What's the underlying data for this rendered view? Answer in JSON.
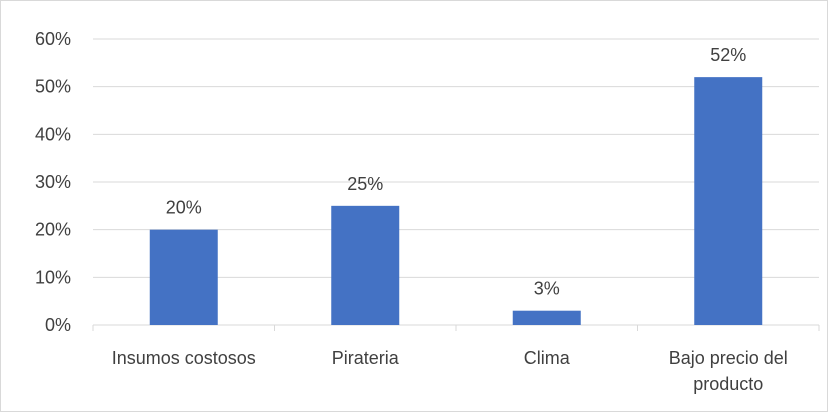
{
  "chart_data": {
    "type": "bar",
    "title": "",
    "xlabel": "",
    "ylabel": "",
    "categories": [
      "Insumos costosos",
      "Pirateria",
      "Clima",
      "Bajo precio del producto"
    ],
    "category_lines": [
      [
        "Insumos costosos"
      ],
      [
        "Pirateria"
      ],
      [
        "Clima"
      ],
      [
        "Bajo precio del",
        "producto"
      ]
    ],
    "values": [
      0.2,
      0.25,
      0.03,
      0.52
    ],
    "value_labels": [
      "20%",
      "25%",
      "3%",
      "52%"
    ],
    "ylim": [
      0,
      0.6
    ],
    "yticks": [
      0,
      0.1,
      0.2,
      0.3,
      0.4,
      0.5,
      0.6
    ],
    "ytick_labels": [
      "0%",
      "10%",
      "20%",
      "30%",
      "40%",
      "50%",
      "60%"
    ],
    "grid": true,
    "legend": false,
    "bar_color": "#4472c4",
    "grid_color": "#d9d9d9",
    "text_color": "#404040"
  }
}
